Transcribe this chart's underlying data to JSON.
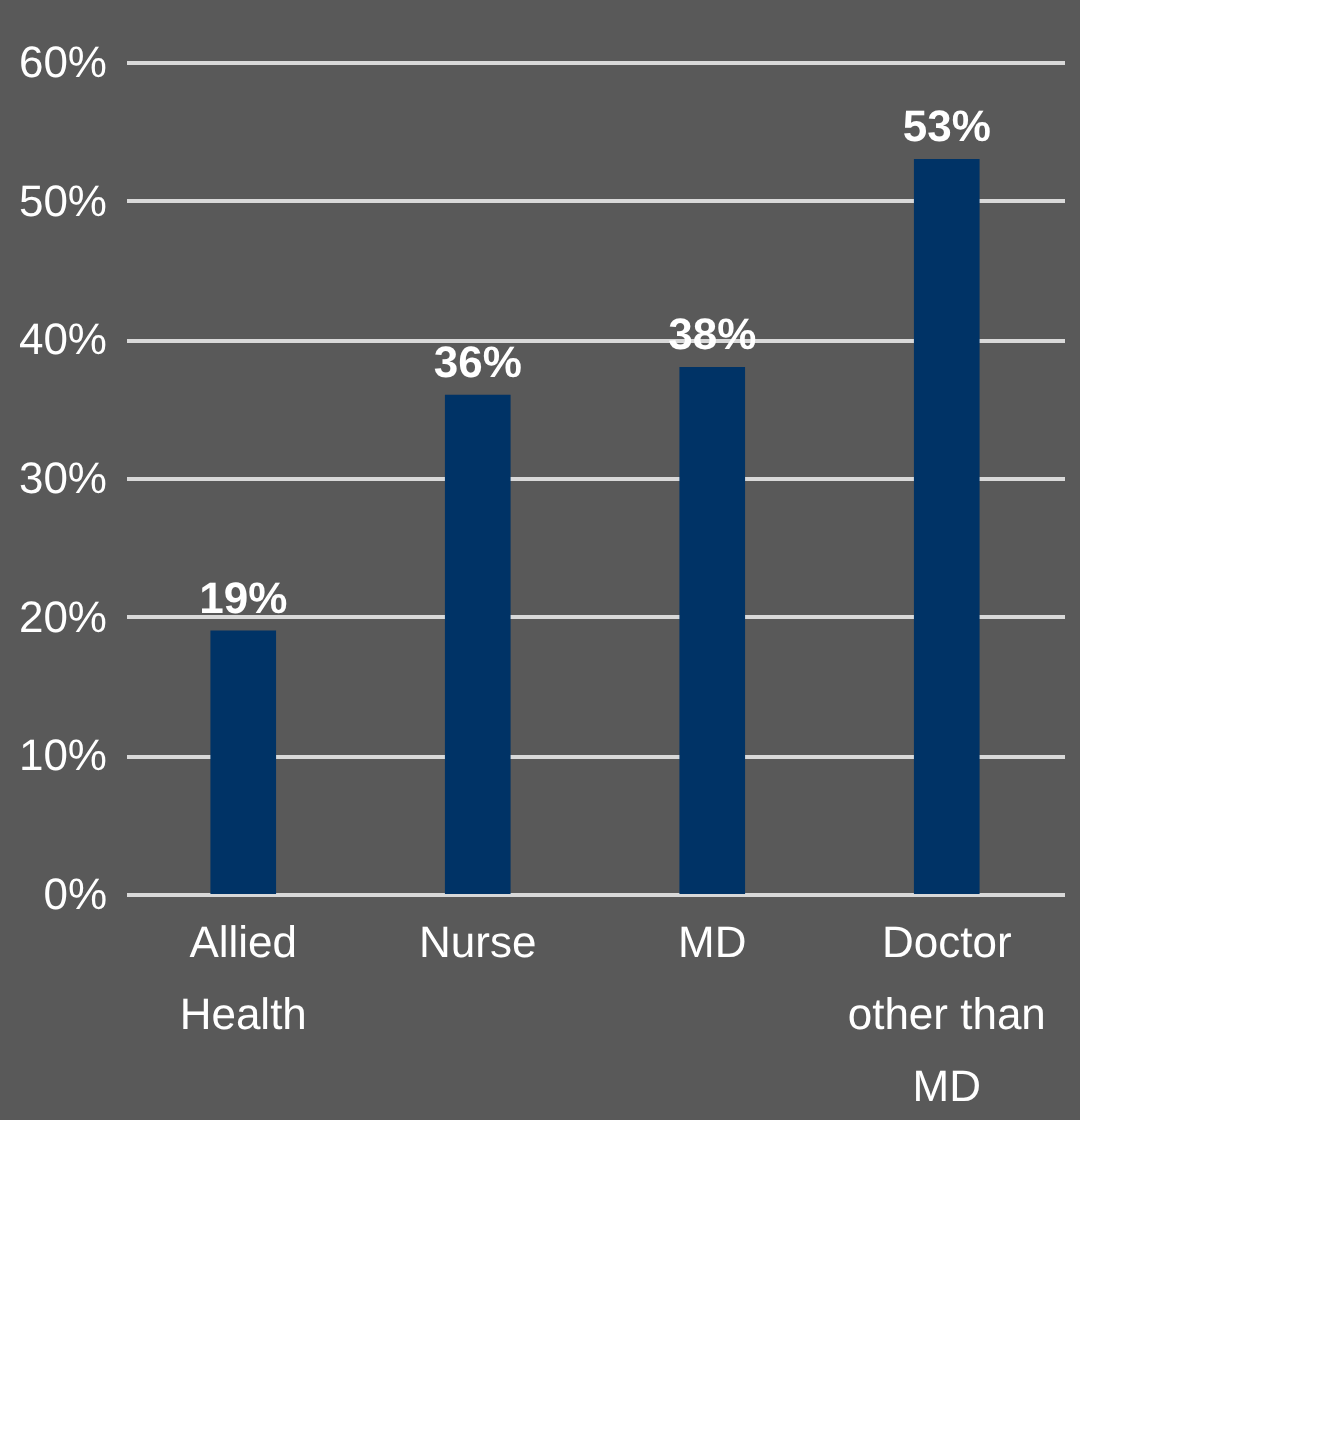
{
  "chart_data": {
    "type": "bar",
    "categories": [
      "Allied Health",
      "Nurse",
      "MD",
      "Doctor other than MD"
    ],
    "values": [
      19,
      36,
      38,
      53
    ],
    "color": "#003366",
    "value_labels": [
      "19%",
      "36%",
      "38%",
      "53%"
    ],
    "ylim": [
      0,
      60
    ],
    "yticks": [
      {
        "value": 0,
        "label": "0%"
      },
      {
        "value": 10,
        "label": "10%"
      },
      {
        "value": 20,
        "label": "20%"
      },
      {
        "value": 30,
        "label": "30%"
      },
      {
        "value": 40,
        "label": "40%"
      },
      {
        "value": 50,
        "label": "50%"
      },
      {
        "value": 60,
        "label": "60%"
      }
    ],
    "grid": "y"
  }
}
